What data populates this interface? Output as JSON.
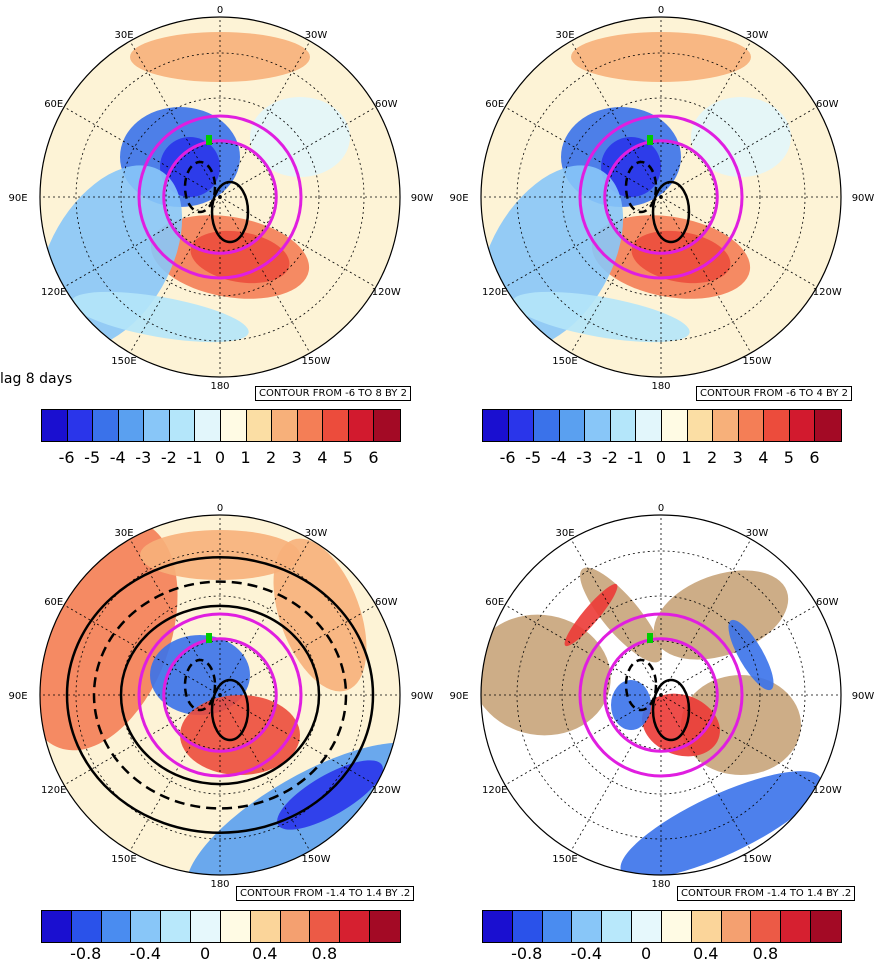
{
  "lag_label": "lag 8 days",
  "longitude_labels": [
    "0",
    "30W",
    "60W",
    "90W",
    "120W",
    "150W",
    "180",
    "150E",
    "120E",
    "90E",
    "60E",
    "30E"
  ],
  "panels": [
    {
      "contour_text": "CONTOUR FROM -6 TO 8 BY 2",
      "land_mask": false
    },
    {
      "contour_text": "CONTOUR FROM -6 TO 4 BY 2",
      "land_mask": false
    },
    {
      "contour_text": "CONTOUR FROM -1.4 TO 1.4 BY .2",
      "land_mask": false
    },
    {
      "contour_text": "CONTOUR FROM -1.4 TO 1.4 BY .2",
      "land_mask": true
    }
  ],
  "colorbar_top": {
    "colors": [
      "#1a0fd0",
      "#2a35ea",
      "#3a72ea",
      "#5aa0f0",
      "#88c6f8",
      "#b4e6fa",
      "#e2f6fb",
      "#fffbe4",
      "#fbdea4",
      "#f7b07a",
      "#f47e56",
      "#ec4c3c",
      "#d21a2e",
      "#a30a25"
    ],
    "ticks": [
      "-6",
      "-5",
      "-4",
      "-3",
      "-2",
      "-1",
      "0",
      "1",
      "2",
      "3",
      "4",
      "5",
      "6"
    ]
  },
  "colorbar_bottom": {
    "colors": [
      "#1a0fd0",
      "#2a52ea",
      "#4a8cf0",
      "#88c6f8",
      "#b8e8fb",
      "#e6f8fc",
      "#fffbe4",
      "#fbd59a",
      "#f4a070",
      "#ec5a46",
      "#d62030",
      "#a30a25"
    ],
    "ticks": [
      "-0.8",
      "-0.4",
      "0",
      "0.4",
      "0.8"
    ]
  },
  "colors": {
    "magenta": "#e01ee0",
    "land": "#c8a47a",
    "green_marker": "#00cc00"
  }
}
